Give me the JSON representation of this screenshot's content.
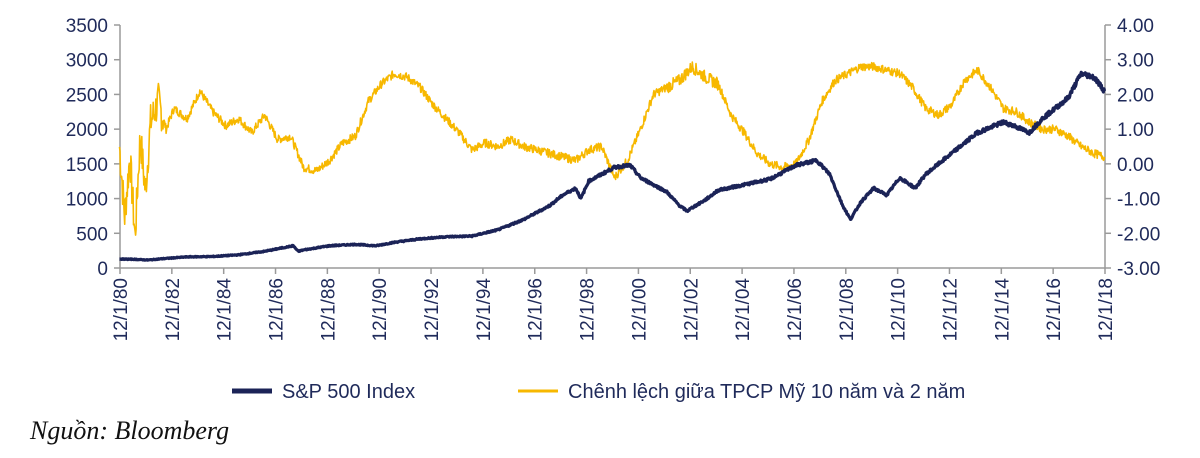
{
  "chart_data": {
    "type": "line",
    "title": "",
    "grid": false,
    "legend_position": "bottom",
    "x_ticks": [
      "12/1/80",
      "12/1/82",
      "12/1/84",
      "12/1/86",
      "12/1/88",
      "12/1/90",
      "12/1/92",
      "12/1/94",
      "12/1/96",
      "12/1/98",
      "12/1/00",
      "12/1/02",
      "12/1/04",
      "12/1/06",
      "12/1/08",
      "12/1/10",
      "12/1/12",
      "12/1/14",
      "12/1/16",
      "12/1/18"
    ],
    "x_range": [
      1980.92,
      2018.92
    ],
    "y_left": {
      "range": [
        0,
        3500
      ],
      "ticks": [
        "0",
        "500",
        "1000",
        "1500",
        "2000",
        "2500",
        "3000",
        "3500"
      ]
    },
    "y_right": {
      "range": [
        -3,
        4
      ],
      "ticks": [
        "-3.00",
        "-2.00",
        "-1.00",
        "0.00",
        "1.00",
        "2.00",
        "3.00",
        "4.00"
      ]
    },
    "series": [
      {
        "name": "S&P 500 Index",
        "axis": "left",
        "color": "#1b2357",
        "x": [
          1980.9,
          1981.5,
          1982.0,
          1982.6,
          1983.5,
          1984.5,
          1985.5,
          1986.5,
          1987.6,
          1987.8,
          1988.0,
          1989.0,
          1990.0,
          1990.8,
          1991.5,
          1992.5,
          1993.5,
          1994.5,
          1995.5,
          1996.5,
          1997.5,
          1998.0,
          1998.5,
          1998.7,
          1999.0,
          1999.5,
          2000.0,
          2000.6,
          2001.0,
          2001.5,
          2002.0,
          2002.5,
          2002.8,
          2003.0,
          2003.5,
          2004.0,
          2005.0,
          2006.0,
          2007.0,
          2007.8,
          2008.3,
          2008.8,
          2009.1,
          2009.5,
          2010.0,
          2010.5,
          2011.0,
          2011.6,
          2012.0,
          2013.0,
          2014.0,
          2015.0,
          2015.4,
          2016.0,
          2016.5,
          2017.0,
          2017.5,
          2018.0,
          2018.5,
          2018.9
        ],
        "values": [
          130,
          125,
          115,
          135,
          160,
          165,
          190,
          240,
          320,
          240,
          260,
          320,
          340,
          320,
          370,
          420,
          450,
          460,
          550,
          700,
          900,
          1050,
          1150,
          1000,
          1250,
          1350,
          1450,
          1480,
          1300,
          1200,
          1100,
          900,
          820,
          870,
          980,
          1120,
          1200,
          1280,
          1480,
          1550,
          1350,
          900,
          700,
          950,
          1150,
          1050,
          1300,
          1150,
          1350,
          1650,
          1950,
          2100,
          2050,
          1950,
          2150,
          2300,
          2450,
          2800,
          2750,
          2550
        ]
      },
      {
        "name": "Chênh lệch giữa TPCP Mỹ 10 năm và 2 năm",
        "axis": "right",
        "color": "#f7b800",
        "x": [
          1980.9,
          1981.1,
          1981.3,
          1981.5,
          1981.7,
          1981.9,
          1982.1,
          1982.4,
          1982.7,
          1983.0,
          1983.5,
          1984.0,
          1984.5,
          1985.0,
          1985.5,
          1986.0,
          1986.5,
          1987.0,
          1987.5,
          1988.0,
          1988.5,
          1989.0,
          1989.5,
          1990.0,
          1990.5,
          1991.0,
          1991.5,
          1992.0,
          1992.5,
          1993.0,
          1993.5,
          1994.0,
          1994.5,
          1995.0,
          1995.5,
          1996.0,
          1996.5,
          1997.0,
          1997.5,
          1998.0,
          1998.5,
          1999.0,
          1999.5,
          2000.0,
          2000.5,
          2001.0,
          2001.5,
          2002.0,
          2002.5,
          2003.0,
          2003.5,
          2004.0,
          2004.5,
          2005.0,
          2005.5,
          2006.0,
          2006.5,
          2007.0,
          2007.5,
          2008.0,
          2008.5,
          2009.0,
          2009.5,
          2010.0,
          2010.5,
          2011.0,
          2011.5,
          2012.0,
          2012.5,
          2013.0,
          2013.5,
          2014.0,
          2014.5,
          2015.0,
          2015.5,
          2016.0,
          2016.5,
          2017.0,
          2017.5,
          2018.0,
          2018.5,
          2018.9
        ],
        "values": [
          0.5,
          -1.5,
          0.2,
          -2.1,
          0.8,
          -0.8,
          1.2,
          1.8,
          1.0,
          1.6,
          1.3,
          2.1,
          1.5,
          1.1,
          1.3,
          0.9,
          1.4,
          0.7,
          0.8,
          -0.1,
          -0.2,
          0.1,
          0.6,
          0.8,
          1.8,
          2.3,
          2.6,
          2.5,
          2.2,
          1.7,
          1.3,
          0.9,
          0.4,
          0.6,
          0.5,
          0.7,
          0.5,
          0.4,
          0.3,
          0.2,
          0.1,
          0.4,
          0.5,
          -0.4,
          0.1,
          1.0,
          2.0,
          2.2,
          2.4,
          2.8,
          2.5,
          2.3,
          1.4,
          0.9,
          0.3,
          0.0,
          -0.1,
          0.0,
          0.7,
          1.8,
          2.4,
          2.6,
          2.8,
          2.8,
          2.7,
          2.6,
          2.2,
          1.6,
          1.4,
          1.7,
          2.4,
          2.7,
          2.2,
          1.6,
          1.5,
          1.2,
          1.0,
          1.0,
          0.8,
          0.5,
          0.3,
          0.2
        ]
      }
    ]
  },
  "source": "Nguồn: Bloomberg"
}
